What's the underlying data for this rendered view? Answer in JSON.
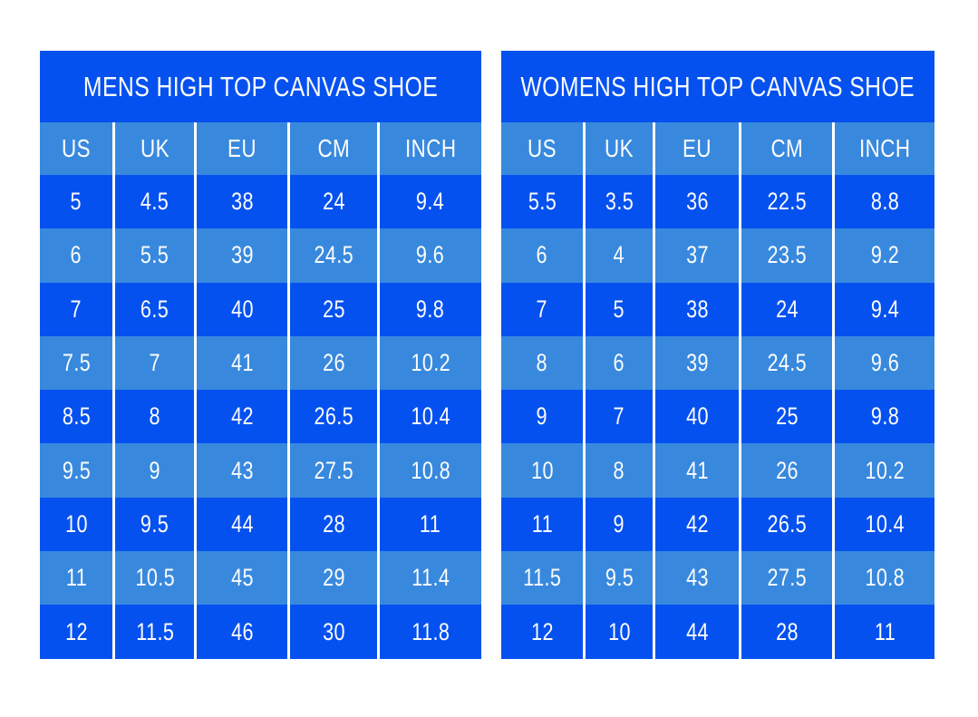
{
  "colors": {
    "dark_blue": "#0551f0",
    "light_blue": "#3889de",
    "text": "#fcfcfc",
    "separator": "#ffffff",
    "page_background": "#ffffff"
  },
  "chart_data": [
    {
      "type": "table",
      "title": "MENS HIGH TOP CANVAS SHOE",
      "columns": [
        "US",
        "UK",
        "EU",
        "CM",
        "INCH"
      ],
      "rows": [
        [
          "5",
          "4.5",
          "38",
          "24",
          "9.4"
        ],
        [
          "6",
          "5.5",
          "39",
          "24.5",
          "9.6"
        ],
        [
          "7",
          "6.5",
          "40",
          "25",
          "9.8"
        ],
        [
          "7.5",
          "7",
          "41",
          "26",
          "10.2"
        ],
        [
          "8.5",
          "8",
          "42",
          "26.5",
          "10.4"
        ],
        [
          "9.5",
          "9",
          "43",
          "27.5",
          "10.8"
        ],
        [
          "10",
          "9.5",
          "44",
          "28",
          "11"
        ],
        [
          "11",
          "10.5",
          "45",
          "29",
          "11.4"
        ],
        [
          "12",
          "11.5",
          "46",
          "30",
          "11.8"
        ]
      ],
      "layout_hints": {
        "row_stripes": "alternating dark/light starting dark",
        "grid": "vertical white separators only"
      }
    },
    {
      "type": "table",
      "title": "WOMENS HIGH TOP CANVAS SHOE",
      "columns": [
        "US",
        "UK",
        "EU",
        "CM",
        "INCH"
      ],
      "rows": [
        [
          "5.5",
          "3.5",
          "36",
          "22.5",
          "8.8"
        ],
        [
          "6",
          "4",
          "37",
          "23.5",
          "9.2"
        ],
        [
          "7",
          "5",
          "38",
          "24",
          "9.4"
        ],
        [
          "8",
          "6",
          "39",
          "24.5",
          "9.6"
        ],
        [
          "9",
          "7",
          "40",
          "25",
          "9.8"
        ],
        [
          "10",
          "8",
          "41",
          "26",
          "10.2"
        ],
        [
          "11",
          "9",
          "42",
          "26.5",
          "10.4"
        ],
        [
          "11.5",
          "9.5",
          "43",
          "27.5",
          "10.8"
        ],
        [
          "12",
          "10",
          "44",
          "28",
          "11"
        ]
      ],
      "layout_hints": {
        "row_stripes": "alternating dark/light starting dark",
        "grid": "vertical white separators only"
      }
    }
  ]
}
